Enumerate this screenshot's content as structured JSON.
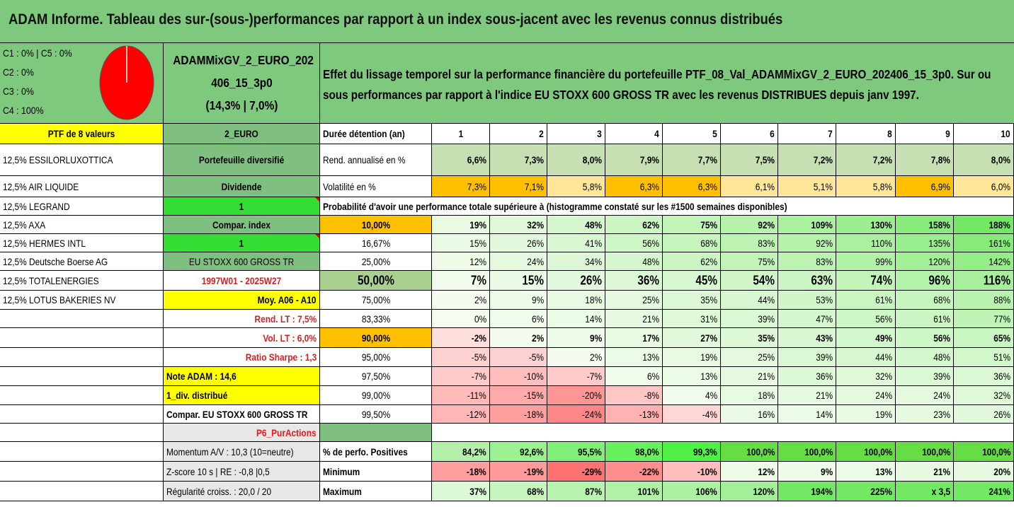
{
  "title": "ADAM Informe. Tableau des sur-(sous-)performances par rapport à un index sous-jacent avec les revenus connus distribués",
  "legend": [
    "C1 : 0% | C5 : 0%",
    "C2 : 0%",
    "C3 : 0%",
    "C4 : 100%"
  ],
  "pie": {
    "color": "#ff0000",
    "share_c4": 1.0
  },
  "portfolio_name": [
    "ADAMMixGV_2_EURO_202",
    "406_15_3p0",
    "(14,3% | 7,0%)"
  ],
  "description": "Effet du lissage temporel sur la performance financière du portefeuille PTF_08_Val_ADAMMixGV_2_EURO_202406_15_3p0. Sur ou sous performances par rapport à l'indice EU STOXX 600 GROSS TR avec les revenus DISTRIBUES depuis janv 1997.",
  "holdings_header": "PTF de 8 valeurs",
  "holdings": [
    "12,5% ESSILORLUXOTTICA",
    "12,5% AIR LIQUIDE",
    "12,5% LEGRAND",
    "12,5% AXA",
    "12,5% HERMES INTL",
    "12,5% Deutsche Boerse AG",
    "12,5% TOTALENERGIES",
    "12,5% LOTUS BAKERIES NV"
  ],
  "params": {
    "currency": "2_EURO",
    "type": "Portefeuille diversifié",
    "dividend_label": "Dividende",
    "dividend_value": "1",
    "compar_label": "Compar. index",
    "compar_value": "1",
    "index_name": "EU STOXX 600 GROSS TR",
    "period": "1997W01 - 2025W27",
    "moy": "Moy. A06 - A10",
    "rend_lt": "Rend. LT : 7,5%",
    "vol_lt": "Vol. LT : 6,0%",
    "sharpe": "Ratio Sharpe : 1,3",
    "note": "Note ADAM : 14,6",
    "div_distrib": "1_div. distribué",
    "compar_full": "Compar. EU STOXX 600 GROSS TR",
    "strategy": "P6_PurActions",
    "momentum": "Momentum A/V : 10,3 (10=neutre)",
    "zscore": "Z-score 10 s | RE : -0,8 |0,5",
    "regularite": "Régularité croiss. : 20,0 / 20"
  },
  "stats": {
    "duration_label": "Durée détention (an)",
    "years": [
      "1",
      "2",
      "3",
      "4",
      "5",
      "6",
      "7",
      "8",
      "9",
      "10"
    ],
    "rend_label": "Rend. annualisé en %",
    "rend": [
      "6,6%",
      "7,3%",
      "8,0%",
      "7,9%",
      "7,7%",
      "7,5%",
      "7,2%",
      "7,2%",
      "7,8%",
      "8,0%"
    ],
    "vol_label": "Volatilité en %",
    "vol": [
      "7,3%",
      "7,1%",
      "5,8%",
      "6,3%",
      "6,3%",
      "6,1%",
      "5,1%",
      "5,8%",
      "6,9%",
      "6,0%"
    ],
    "prob_title": "Probabilité d'avoir une performance totale supérieure à (histogramme constaté sur les #1500 semaines disponibles)",
    "prob_rows": [
      {
        "p": "10,00%",
        "v": [
          "19%",
          "32%",
          "48%",
          "62%",
          "75%",
          "92%",
          "109%",
          "130%",
          "158%",
          "188%"
        ]
      },
      {
        "p": "16,67%",
        "v": [
          "15%",
          "26%",
          "41%",
          "56%",
          "68%",
          "83%",
          "92%",
          "110%",
          "135%",
          "161%"
        ]
      },
      {
        "p": "25,00%",
        "v": [
          "12%",
          "24%",
          "34%",
          "48%",
          "62%",
          "75%",
          "83%",
          "99%",
          "120%",
          "142%"
        ]
      },
      {
        "p": "50,00%",
        "v": [
          "7%",
          "15%",
          "26%",
          "36%",
          "45%",
          "54%",
          "63%",
          "74%",
          "96%",
          "116%"
        ]
      },
      {
        "p": "75,00%",
        "v": [
          "2%",
          "9%",
          "18%",
          "25%",
          "35%",
          "44%",
          "53%",
          "61%",
          "68%",
          "88%"
        ]
      },
      {
        "p": "83,33%",
        "v": [
          "0%",
          "6%",
          "14%",
          "21%",
          "31%",
          "39%",
          "47%",
          "56%",
          "61%",
          "77%"
        ]
      },
      {
        "p": "90,00%",
        "v": [
          "-2%",
          "2%",
          "9%",
          "17%",
          "27%",
          "35%",
          "43%",
          "49%",
          "56%",
          "65%"
        ]
      },
      {
        "p": "95,00%",
        "v": [
          "-5%",
          "-5%",
          "2%",
          "13%",
          "19%",
          "25%",
          "39%",
          "44%",
          "48%",
          "51%"
        ]
      },
      {
        "p": "97,50%",
        "v": [
          "-7%",
          "-10%",
          "-7%",
          "6%",
          "13%",
          "21%",
          "36%",
          "32%",
          "39%",
          "36%"
        ]
      },
      {
        "p": "99,00%",
        "v": [
          "-11%",
          "-15%",
          "-20%",
          "-8%",
          "4%",
          "18%",
          "21%",
          "24%",
          "24%",
          "32%"
        ]
      },
      {
        "p": "99,50%",
        "v": [
          "-12%",
          "-18%",
          "-24%",
          "-13%",
          "-4%",
          "16%",
          "14%",
          "19%",
          "23%",
          "26%"
        ]
      }
    ],
    "pos_label": "% de perfo. Positives",
    "pos": [
      "84,2%",
      "92,6%",
      "95,5%",
      "98,0%",
      "99,3%",
      "100,0%",
      "100,0%",
      "100,0%",
      "100,0%",
      "100,0%"
    ],
    "min_label": "Minimum",
    "min": [
      "-18%",
      "-19%",
      "-29%",
      "-22%",
      "-10%",
      "12%",
      "9%",
      "13%",
      "21%",
      "20%"
    ],
    "max_label": "Maximum",
    "max": [
      "37%",
      "68%",
      "87%",
      "101%",
      "106%",
      "120%",
      "194%",
      "225%",
      "x 3,5",
      "241%"
    ]
  },
  "colors": {
    "header_green": "#7fc97f",
    "param_green": "#7fbf7f",
    "bright_green": "#33dd33",
    "yellow": "#ffff00",
    "orange": "#ffc000",
    "red_text": "#e31b1b",
    "rend_bg": "#c6e0b4",
    "median_bg": "#a9d08e"
  }
}
